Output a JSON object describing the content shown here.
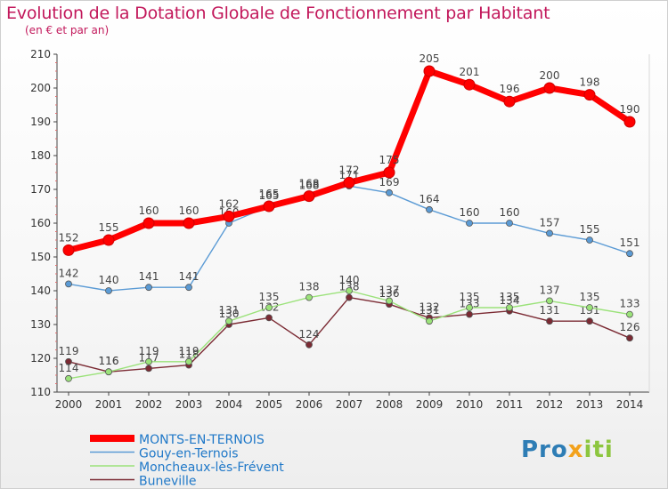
{
  "chart_data": {
    "type": "line",
    "title": "Evolution de la Dotation Globale de Fonctionnement par Habitant",
    "subtitle": "(en € et par an)",
    "x": [
      "2000",
      "2001",
      "2002",
      "2003",
      "2004",
      "2005",
      "2006",
      "2007",
      "2008",
      "2009",
      "2010",
      "2011",
      "2012",
      "2013",
      "2014"
    ],
    "ylim": [
      110,
      210
    ],
    "yticks": [
      110,
      120,
      130,
      140,
      150,
      160,
      170,
      180,
      190,
      200,
      210
    ],
    "grid": false,
    "legend_position": "bottom-left",
    "series": [
      {
        "name": "MONTS-EN-TERNOIS",
        "color": "#ff0000",
        "values": [
          152,
          155,
          160,
          160,
          162,
          165,
          168,
          172,
          175,
          205,
          201,
          196,
          200,
          198,
          190
        ]
      },
      {
        "name": "Gouy-en-Ternois",
        "color": "#5b9bd5",
        "values": [
          142,
          140,
          141,
          141,
          160,
          165,
          168,
          171,
          169,
          164,
          160,
          160,
          157,
          155,
          151
        ]
      },
      {
        "name": "Moncheaux-lès-Frévent",
        "color": "#9be27a",
        "values": [
          114,
          116,
          119,
          119,
          131,
          135,
          138,
          140,
          137,
          131,
          135,
          135,
          137,
          135,
          133
        ]
      },
      {
        "name": "Buneville",
        "color": "#7b2a33",
        "values": [
          119,
          116,
          117,
          118,
          130,
          132,
          124,
          138,
          136,
          132,
          133,
          134,
          131,
          131,
          126
        ]
      }
    ]
  },
  "branding": {
    "logo_text": "Proxiti"
  }
}
